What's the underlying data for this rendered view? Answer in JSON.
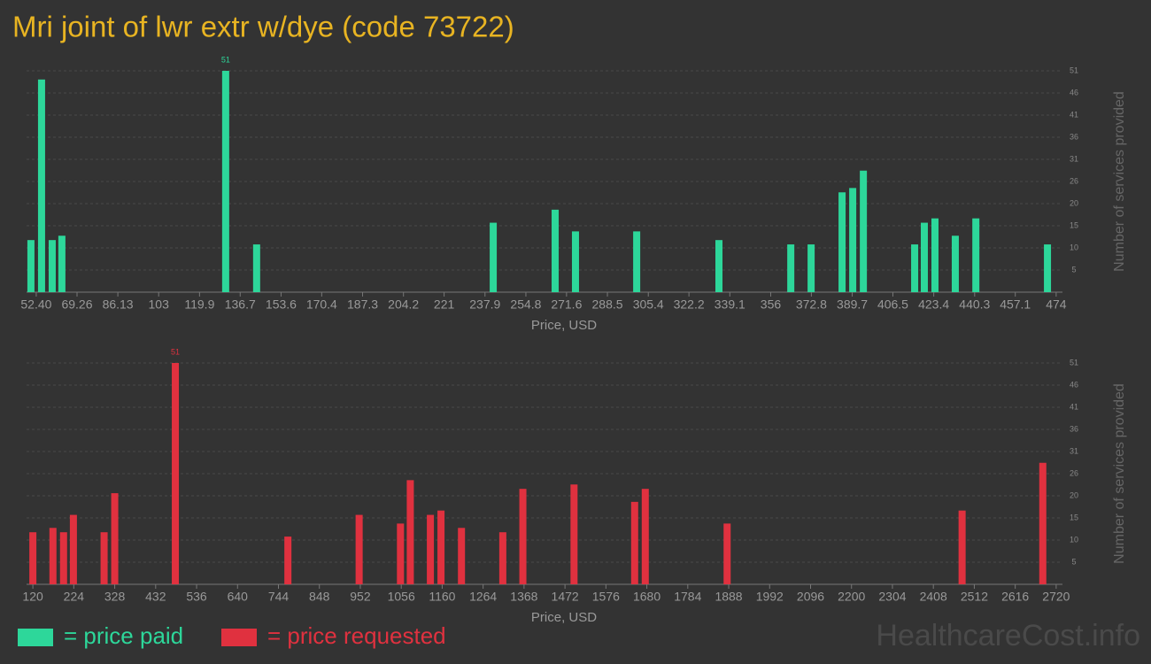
{
  "title": "Mri joint of lwr extr w/dye (code 73722)",
  "watermark": "HealthcareCost.info",
  "chart_data": [
    {
      "type": "bar",
      "xlabel": "Price, USD",
      "ylabel": "Number of services provided",
      "grid": true,
      "x": [
        50.2,
        54.6,
        59.0,
        63.0,
        130.7,
        143.5,
        241.3,
        266.9,
        275.3,
        300.6,
        334.6,
        364.3,
        372.7,
        385.5,
        389.9,
        394.3,
        415.5,
        419.5,
        423.9,
        432.3,
        440.8,
        470.4
      ],
      "series": [
        {
          "name": "= price paid",
          "color": "#2dd79a",
          "values": [
            12,
            49,
            12,
            13,
            51,
            11,
            16,
            19,
            14,
            14,
            12,
            11,
            11,
            23,
            24,
            28,
            11,
            16,
            17,
            13,
            17,
            11
          ]
        }
      ],
      "xlim": [
        48.4,
        476.6
      ],
      "xticks": [
        {
          "value": 52.4,
          "label": "52.40"
        },
        69.26,
        86.13,
        103,
        119.9,
        136.7,
        153.6,
        170.4,
        187.3,
        204.2,
        221,
        237.9,
        254.8,
        271.6,
        288.5,
        305.4,
        322.2,
        339.1,
        356,
        372.8,
        389.7,
        406.5,
        423.4,
        440.3,
        457.1,
        474
      ],
      "ylim": [
        0,
        51
      ],
      "yticks": [
        {
          "value": 5.1,
          "label": "5"
        },
        {
          "value": 10.2,
          "label": "10"
        },
        {
          "value": 15.3,
          "label": "15"
        },
        {
          "value": 20.4,
          "label": "20"
        },
        {
          "value": 25.5,
          "label": "26"
        },
        {
          "value": 30.6,
          "label": "31"
        },
        {
          "value": 35.7,
          "label": "36"
        },
        {
          "value": 40.8,
          "label": "41"
        },
        {
          "value": 45.9,
          "label": "46"
        },
        51
      ]
    },
    {
      "type": "bar",
      "xlabel": "Price, USD",
      "ylabel": "Number of services provided",
      "grid": true,
      "x": [
        120,
        171,
        198,
        223,
        301,
        328,
        482,
        768,
        949,
        1054,
        1079,
        1130,
        1157,
        1209,
        1314,
        1365,
        1495,
        1649,
        1676,
        1884,
        2481,
        2686
      ],
      "series": [
        {
          "name": "= price requested",
          "color": "#e0313f",
          "values": [
            12,
            13,
            12,
            16,
            12,
            21,
            51,
            11,
            16,
            14,
            24,
            16,
            17,
            13,
            12,
            22,
            23,
            19,
            22,
            14,
            17,
            28
          ]
        }
      ],
      "xlim": [
        104,
        2736
      ],
      "xticks": [
        120,
        224,
        328,
        432,
        536,
        640,
        744,
        848,
        952,
        1056,
        1160,
        1264,
        1368,
        1472,
        1576,
        1680,
        1784,
        1888,
        1992,
        2096,
        2200,
        2304,
        2408,
        2512,
        2616,
        2720
      ],
      "ylim": [
        0,
        51
      ],
      "yticks": [
        {
          "value": 5.1,
          "label": "5"
        },
        {
          "value": 10.2,
          "label": "10"
        },
        {
          "value": 15.3,
          "label": "15"
        },
        {
          "value": 20.4,
          "label": "20"
        },
        {
          "value": 25.5,
          "label": "26"
        },
        {
          "value": 30.6,
          "label": "31"
        },
        {
          "value": 35.7,
          "label": "36"
        },
        {
          "value": 40.8,
          "label": "41"
        },
        {
          "value": 45.9,
          "label": "46"
        },
        51
      ]
    }
  ]
}
